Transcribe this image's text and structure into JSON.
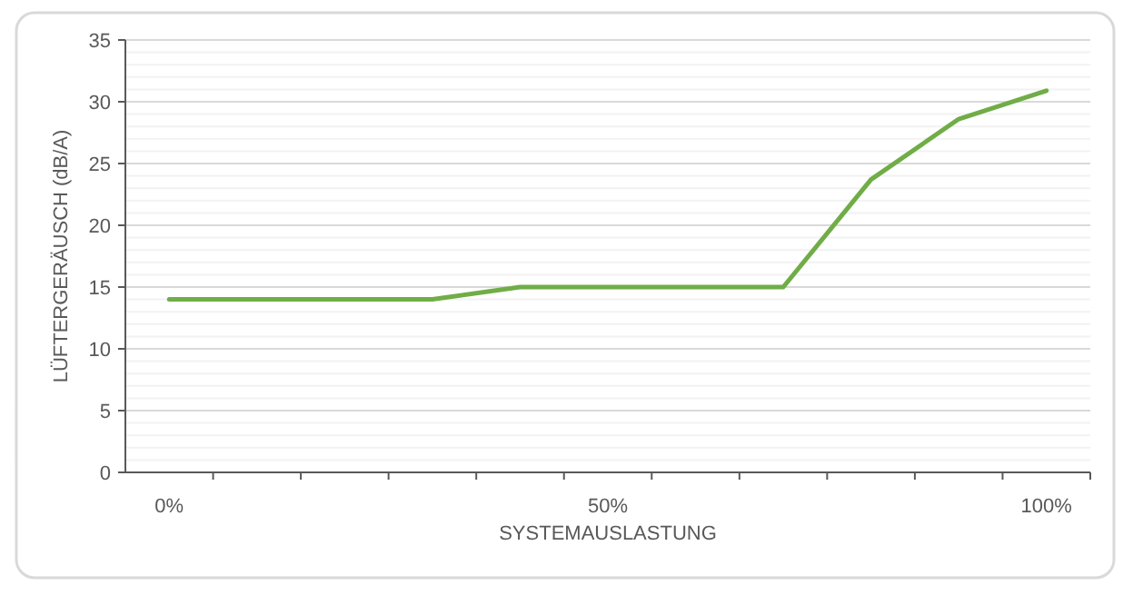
{
  "chart_data": {
    "type": "line",
    "xlabel": "SYSTEMAUSLASTUNG",
    "ylabel": "LÜFTERGERÄUSCH (dB/A)",
    "categories": [
      "0%",
      null,
      null,
      null,
      null,
      "50%",
      null,
      null,
      null,
      null,
      "100%"
    ],
    "series": [
      {
        "color": "#70ad47",
        "values": [
          14,
          14,
          14,
          14,
          15,
          15,
          15,
          15,
          23.7,
          28.6,
          30.9
        ]
      }
    ],
    "ylim": [
      0,
      35
    ],
    "yticks": [
      0,
      {
        "value": 1,
        "label": null
      },
      {
        "value": 2,
        "label": null
      },
      {
        "value": 3,
        "label": null
      },
      {
        "value": 4,
        "label": null
      },
      5,
      {
        "value": 6,
        "label": null
      },
      {
        "value": 7,
        "label": null
      },
      {
        "value": 8,
        "label": null
      },
      {
        "value": 9,
        "label": null
      },
      10,
      {
        "value": 11,
        "label": null
      },
      {
        "value": 12,
        "label": null
      },
      {
        "value": 13,
        "label": null
      },
      {
        "value": 14,
        "label": null
      },
      15,
      {
        "value": 16,
        "label": null
      },
      {
        "value": 17,
        "label": null
      },
      {
        "value": 18,
        "label": null
      },
      {
        "value": 19,
        "label": null
      },
      20,
      {
        "value": 21,
        "label": null
      },
      {
        "value": 22,
        "label": null
      },
      {
        "value": 23,
        "label": null
      },
      {
        "value": 24,
        "label": null
      },
      25,
      {
        "value": 26,
        "label": null
      },
      {
        "value": 27,
        "label": null
      },
      {
        "value": 28,
        "label": null
      },
      {
        "value": 29,
        "label": null
      },
      30,
      {
        "value": 31,
        "label": null
      },
      {
        "value": 32,
        "label": null
      },
      {
        "value": 33,
        "label": null
      },
      {
        "value": 34,
        "label": null
      },
      35
    ],
    "grid": "y",
    "marker": "none",
    "line_style": "solid"
  }
}
